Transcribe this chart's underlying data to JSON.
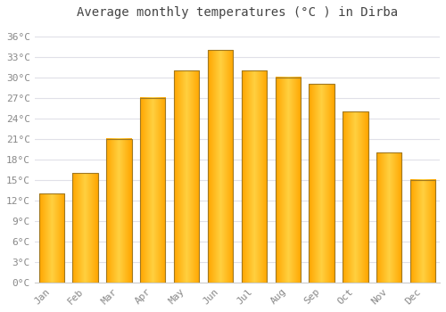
{
  "title": "Average monthly temperatures (°C ) in Dirba",
  "months": [
    "Jan",
    "Feb",
    "Mar",
    "Apr",
    "May",
    "Jun",
    "Jul",
    "Aug",
    "Sep",
    "Oct",
    "Nov",
    "Dec"
  ],
  "values": [
    13,
    16,
    21,
    27,
    31,
    34,
    31,
    30,
    29,
    25,
    19,
    15
  ],
  "bar_color_left": "#FFA500",
  "bar_color_center": "#FFD040",
  "bar_color_right": "#FFA500",
  "bar_edge_color": "#A07820",
  "background_color": "#FFFFFF",
  "plot_bg_color": "#FFFFFF",
  "grid_color": "#E0E0E8",
  "yticks": [
    0,
    3,
    6,
    9,
    12,
    15,
    18,
    21,
    24,
    27,
    30,
    33,
    36
  ],
  "ylim": [
    0,
    37.5
  ],
  "title_fontsize": 10,
  "tick_fontsize": 8,
  "bar_width": 0.75
}
